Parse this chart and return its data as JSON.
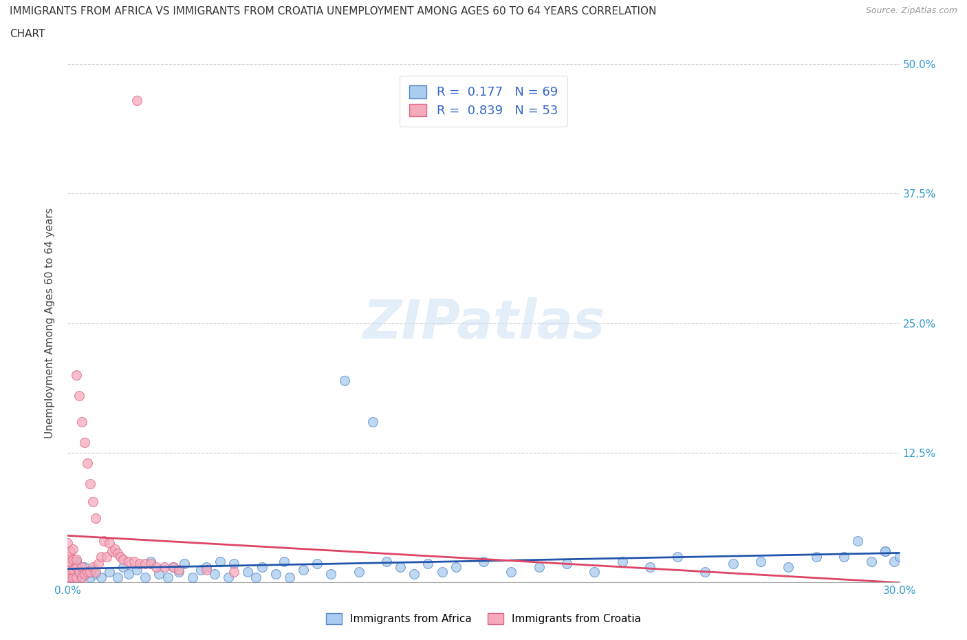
{
  "title_line1": "IMMIGRANTS FROM AFRICA VS IMMIGRANTS FROM CROATIA UNEMPLOYMENT AMONG AGES 60 TO 64 YEARS CORRELATION",
  "title_line2": "CHART",
  "source": "Source: ZipAtlas.com",
  "ylabel": "Unemployment Among Ages 60 to 64 years",
  "xlim": [
    0.0,
    0.3
  ],
  "ylim": [
    0.0,
    0.5
  ],
  "xticks": [
    0.0,
    0.05,
    0.1,
    0.15,
    0.2,
    0.25,
    0.3
  ],
  "xticklabels_left": "0.0%",
  "xticklabels_right": "30.0%",
  "yticks": [
    0.0,
    0.125,
    0.25,
    0.375,
    0.5
  ],
  "yticklabels": [
    "",
    "12.5%",
    "25.0%",
    "37.5%",
    "50.0%"
  ],
  "africa_color": "#aaccee",
  "croatia_color": "#f5aabb",
  "africa_edge": "#5588cc",
  "croatia_edge": "#dd6688",
  "trend_africa_color": "#2255aa",
  "trend_croatia_color": "#dd4466",
  "africa_R": 0.177,
  "africa_N": 69,
  "croatia_R": 0.839,
  "croatia_N": 53,
  "legend_label_africa": "Immigrants from Africa",
  "legend_label_croatia": "Immigrants from Croatia",
  "watermark": "ZIPatlas",
  "background_color": "#ffffff",
  "africa_x": [
    0.001,
    0.002,
    0.003,
    0.003,
    0.004,
    0.005,
    0.006,
    0.007,
    0.008,
    0.009,
    0.01,
    0.012,
    0.015,
    0.018,
    0.02,
    0.022,
    0.025,
    0.028,
    0.03,
    0.033,
    0.036,
    0.038,
    0.04,
    0.042,
    0.045,
    0.048,
    0.05,
    0.053,
    0.055,
    0.058,
    0.06,
    0.065,
    0.068,
    0.07,
    0.075,
    0.078,
    0.08,
    0.085,
    0.09,
    0.095,
    0.1,
    0.105,
    0.11,
    0.115,
    0.12,
    0.125,
    0.13,
    0.135,
    0.14,
    0.15,
    0.16,
    0.17,
    0.18,
    0.19,
    0.2,
    0.21,
    0.22,
    0.23,
    0.24,
    0.25,
    0.26,
    0.27,
    0.28,
    0.29,
    0.295,
    0.298,
    0.3,
    0.285,
    0.295
  ],
  "africa_y": [
    0.005,
    0.008,
    0.005,
    0.02,
    0.01,
    0.005,
    0.015,
    0.008,
    0.005,
    0.012,
    0.008,
    0.005,
    0.01,
    0.005,
    0.015,
    0.008,
    0.012,
    0.005,
    0.02,
    0.008,
    0.005,
    0.015,
    0.01,
    0.018,
    0.005,
    0.012,
    0.015,
    0.008,
    0.02,
    0.005,
    0.018,
    0.01,
    0.005,
    0.015,
    0.008,
    0.02,
    0.005,
    0.012,
    0.018,
    0.008,
    0.195,
    0.01,
    0.155,
    0.02,
    0.015,
    0.008,
    0.018,
    0.01,
    0.015,
    0.02,
    0.01,
    0.015,
    0.018,
    0.01,
    0.02,
    0.015,
    0.025,
    0.01,
    0.018,
    0.02,
    0.015,
    0.025,
    0.025,
    0.02,
    0.03,
    0.02,
    0.025,
    0.04,
    0.03
  ],
  "croatia_x": [
    0.0,
    0.0,
    0.0,
    0.0,
    0.001,
    0.001,
    0.001,
    0.001,
    0.002,
    0.002,
    0.002,
    0.002,
    0.003,
    0.003,
    0.003,
    0.003,
    0.004,
    0.004,
    0.005,
    0.005,
    0.005,
    0.006,
    0.006,
    0.007,
    0.007,
    0.008,
    0.008,
    0.009,
    0.009,
    0.01,
    0.01,
    0.011,
    0.012,
    0.013,
    0.014,
    0.015,
    0.016,
    0.017,
    0.018,
    0.019,
    0.02,
    0.022,
    0.024,
    0.025,
    0.026,
    0.028,
    0.03,
    0.032,
    0.035,
    0.038,
    0.04,
    0.05,
    0.06
  ],
  "croatia_y": [
    0.005,
    0.015,
    0.025,
    0.038,
    0.005,
    0.012,
    0.02,
    0.03,
    0.005,
    0.012,
    0.022,
    0.032,
    0.005,
    0.015,
    0.022,
    0.2,
    0.01,
    0.18,
    0.005,
    0.015,
    0.155,
    0.008,
    0.135,
    0.01,
    0.115,
    0.01,
    0.095,
    0.015,
    0.078,
    0.01,
    0.062,
    0.018,
    0.025,
    0.04,
    0.025,
    0.038,
    0.03,
    0.032,
    0.028,
    0.025,
    0.022,
    0.02,
    0.02,
    0.465,
    0.018,
    0.018,
    0.018,
    0.015,
    0.015,
    0.015,
    0.012,
    0.012,
    0.01
  ]
}
